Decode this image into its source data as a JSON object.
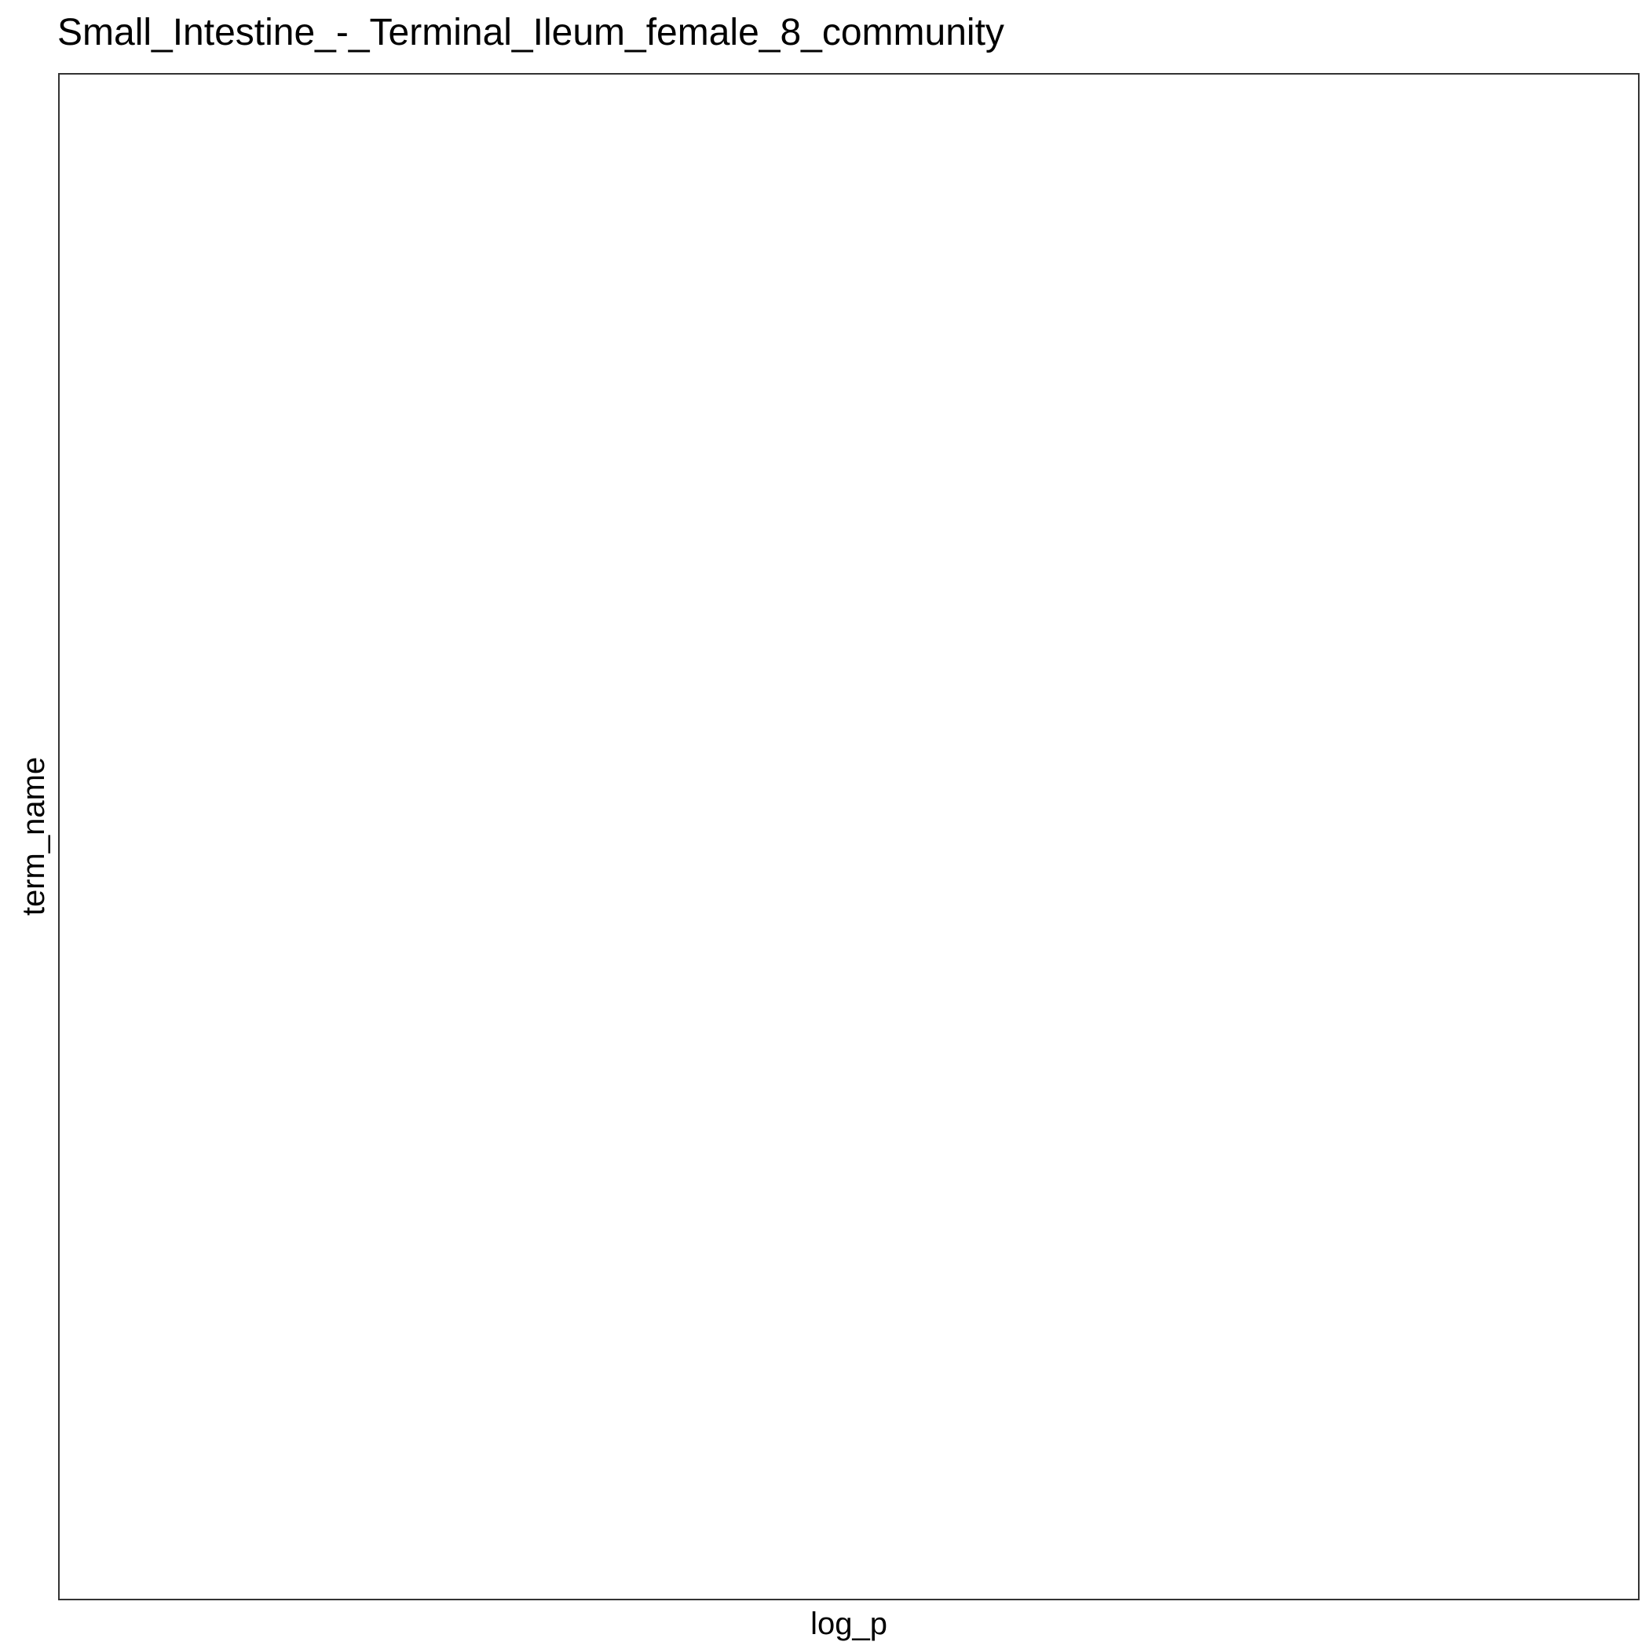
{
  "chart_data": {
    "type": "bar",
    "title": "Small_Intestine_-_Terminal_Ileum_female_8_community",
    "xlabel": "log_p",
    "ylabel": "term_name",
    "categories": [],
    "values": [],
    "grid": false,
    "legend": "none",
    "colors": {
      "panel_border": "#333333",
      "background": "#ffffff",
      "text": "#000000"
    }
  }
}
